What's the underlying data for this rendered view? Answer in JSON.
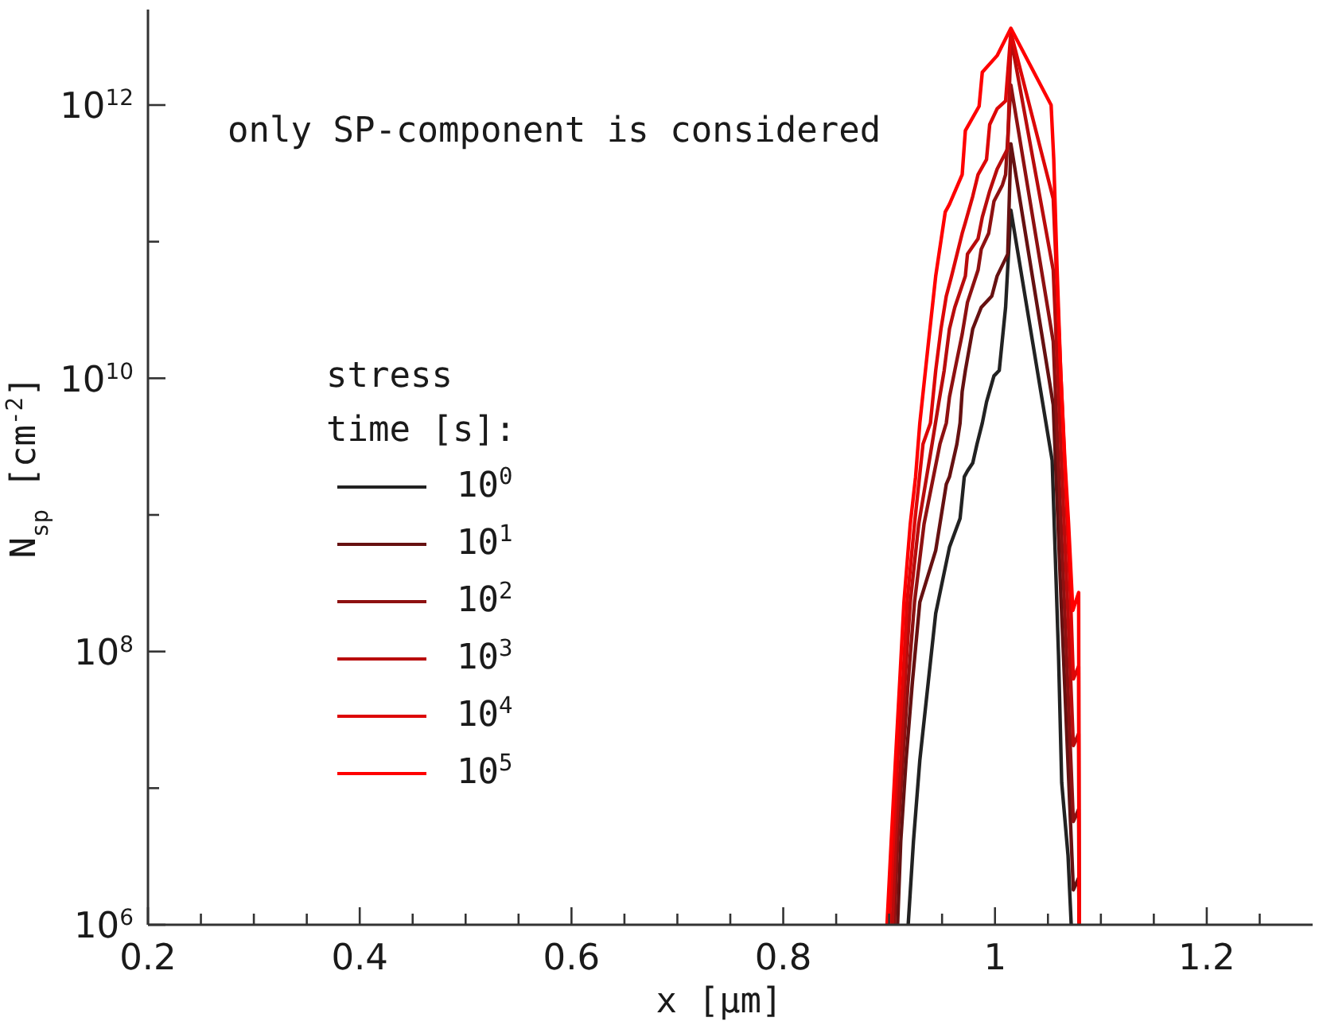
{
  "chart_data": {
    "type": "line",
    "xlabel": "x [μm]",
    "ylabel": "N$_{sp}$ [cm$^{-2}$]",
    "legend_title": "stress time [s]:",
    "annotations": [
      "only SP-component is considered"
    ],
    "xlim": [
      0.2,
      1.3
    ],
    "xticks": [
      0.2,
      {
        "value": 0.25,
        "label": null
      },
      {
        "value": 0.3,
        "label": null
      },
      {
        "value": 0.35,
        "label": null
      },
      0.4,
      {
        "value": 0.45,
        "label": null
      },
      {
        "value": 0.5,
        "label": null
      },
      {
        "value": 0.55,
        "label": null
      },
      0.6,
      {
        "value": 0.65,
        "label": null
      },
      {
        "value": 0.7,
        "label": null
      },
      {
        "value": 0.75,
        "label": null
      },
      0.8,
      {
        "value": 0.85,
        "label": null
      },
      {
        "value": 0.9,
        "label": null
      },
      {
        "value": 0.95,
        "label": null
      },
      1,
      {
        "value": 1.05,
        "label": null
      },
      {
        "value": 1.1,
        "label": null
      },
      {
        "value": 1.15,
        "label": null
      },
      1.2,
      {
        "value": 1.25,
        "label": null
      }
    ],
    "ylim": [
      1000000.0,
      5000000000000.0
    ],
    "yticks": [
      {
        "value": 1000000.0,
        "label": "10$^{6}$"
      },
      {
        "value": 10000000.0,
        "label": null
      },
      {
        "value": 100000000.0,
        "label": "10$^{8}$"
      },
      {
        "value": 1000000000.0,
        "label": null
      },
      {
        "value": 10000000000.0,
        "label": "10$^{10}$"
      },
      {
        "value": 100000000000.0,
        "label": null
      },
      {
        "value": 1000000000000.0,
        "label": "10$^{12}$"
      }
    ],
    "log": true,
    "legend": "left",
    "series": [
      {
        "name": "10$^{0}$",
        "color": "#222222",
        "x": [
          0.918,
          0.923,
          0.929,
          0.937,
          0.944,
          0.957,
          0.967,
          0.971,
          0.974,
          0.979,
          0.983,
          0.988,
          0.992,
          0.999,
          1.004,
          1.01,
          1.015,
          1.054,
          1.06,
          1.063,
          1.069,
          1.072
        ],
        "values": [
          1000000.0,
          4100000.0,
          16000000.0,
          60000000.0,
          190000000.0,
          580000000.0,
          940000000.0,
          1900000000.0,
          2100000000.0,
          2400000000.0,
          3300000000.0,
          4700000000.0,
          6700000000.0,
          10400000000.0,
          11400000000.0,
          33000000000.0,
          170000000000.0,
          2500000000.0,
          94000000.0,
          11000000.0,
          3200000.0,
          1000000.0
        ]
      },
      {
        "name": "10$^{1}$",
        "color": "#661111",
        "x": [
          0.908,
          0.911,
          0.916,
          0.922,
          0.929,
          0.944,
          0.954,
          0.957,
          0.964,
          0.967,
          0.969,
          0.972,
          0.979,
          0.987,
          0.997,
          1.002,
          1.012,
          1.015,
          1.055,
          1.0625,
          1.074,
          1.079,
          1.0795
        ],
        "values": [
          1000000.0,
          4100000.0,
          16000000.0,
          60000000.0,
          230000000.0,
          550000000.0,
          1680000000.0,
          1900000000.0,
          3300000000.0,
          4700000000.0,
          8000000000.0,
          11400000000.0,
          23000000000.0,
          33000000000.0,
          40000000000.0,
          56000000000.0,
          81000000000.0,
          520000000000.0,
          6400000000.0,
          230000000.0,
          1800000.0,
          2200000.0,
          1000000.0
        ]
      },
      {
        "name": "10$^{2}$",
        "color": "#8e1111",
        "x": [
          0.905,
          0.908,
          0.913,
          0.918,
          0.924,
          0.933,
          0.948,
          0.954,
          0.957,
          0.962,
          0.969,
          0.974,
          0.984,
          0.987,
          0.994,
          0.999,
          1.007,
          1.01,
          1.015,
          1.055,
          1.0655,
          1.074,
          1.079,
          1.0795
        ],
        "values": [
          1000000.0,
          4100000.0,
          16000000.0,
          60000000.0,
          230000000.0,
          860000000.0,
          3300000000.0,
          4700000000.0,
          7300000000.0,
          11400000000.0,
          21000000000.0,
          36000000000.0,
          62000000000.0,
          88000000000.0,
          115000000000.0,
          197000000000.0,
          260000000000.0,
          310000000000.0,
          1400000000000.0,
          18600000000.0,
          230000000.0,
          5700000.0,
          7000000.0,
          1000000.0
        ]
      },
      {
        "name": "10$^{3}$",
        "color": "#b80c0c",
        "x": [
          0.903,
          0.906,
          0.911,
          0.915,
          0.92,
          0.928,
          0.94,
          0.947,
          0.952,
          0.957,
          0.962,
          0.972,
          0.974,
          0.984,
          0.988,
          0.995,
          1.002,
          1.012,
          1.015,
          1.055,
          1.0685,
          1.074,
          1.079,
          1.0795
        ],
        "values": [
          1000000.0,
          4100000.0,
          16000000.0,
          60000000.0,
          230000000.0,
          860000000.0,
          3100000000.0,
          6700000000.0,
          11400000000.0,
          23000000000.0,
          33000000000.0,
          56000000000.0,
          81000000000.0,
          105000000000.0,
          151000000000.0,
          235000000000.0,
          340000000000.0,
          480000000000.0,
          3100000000000.0,
          62000000000.0,
          230000000.0,
          20500000.0,
          25000000.0,
          1000000.0
        ]
      },
      {
        "name": "10$^{4}$",
        "color": "#dd0707",
        "x": [
          0.9,
          0.904,
          0.908,
          0.913,
          0.917,
          0.924,
          0.932,
          0.939,
          0.944,
          0.949,
          0.954,
          0.959,
          0.969,
          0.972,
          0.979,
          0.984,
          0.992,
          0.995,
          1.002,
          1.01,
          1.015,
          1.055,
          1.0715,
          1.074,
          1.079,
          1.0795
        ],
        "values": [
          1000000.0,
          4100000.0,
          16000000.0,
          60000000.0,
          230000000.0,
          860000000.0,
          3300000000.0,
          4700000000.0,
          11400000000.0,
          23000000000.0,
          40000000000.0,
          56000000000.0,
          115000000000.0,
          138000000000.0,
          215000000000.0,
          310000000000.0,
          400000000000.0,
          720000000000.0,
          940000000000.0,
          1070000000000.0,
          3400000000000.0,
          206000000000.0,
          230000000.0,
          63000000.0,
          78000000.0,
          1000000.0
        ]
      },
      {
        "name": "10$^{5}$",
        "color": "#ff0000",
        "x": [
          0.898,
          0.902,
          0.906,
          0.91,
          0.914,
          0.92,
          0.925,
          0.929,
          0.937,
          0.944,
          0.953,
          0.957,
          0.969,
          0.972,
          0.985,
          0.988,
          1.002,
          1.015,
          1.053,
          1.0555,
          1.0585,
          1.062,
          1.066,
          1.0695,
          1.0735,
          1.079,
          1.0795
        ],
        "values": [
          1000000.0,
          4100000.0,
          16000000.0,
          60000000.0,
          230000000.0,
          860000000.0,
          1900000000.0,
          4700000000.0,
          17800000000.0,
          56000000000.0,
          165000000000.0,
          188000000000.0,
          310000000000.0,
          650000000000.0,
          980000000000.0,
          1740000000000.0,
          2300000000000.0,
          3650000000000.0,
          1000000000000.0,
          400000000000.0,
          68000000000.0,
          11400000000.0,
          2500000000.0,
          860000000.0,
          200000000.0,
          270000000.0,
          1000000.0
        ]
      }
    ]
  }
}
